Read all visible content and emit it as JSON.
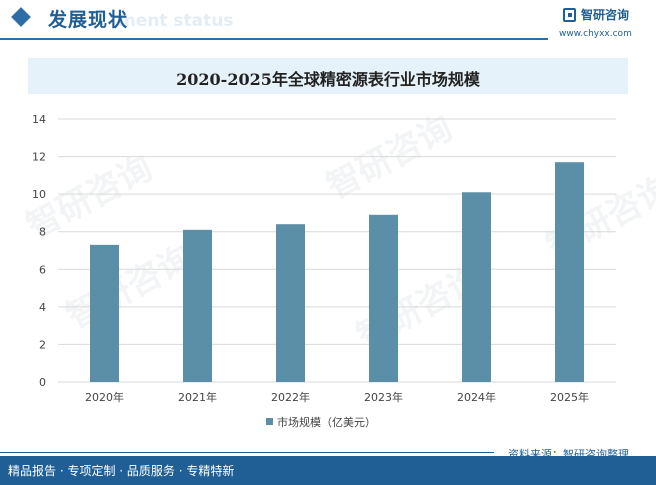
{
  "header": {
    "title": "发展现状",
    "subtitle_ghost": "ment status"
  },
  "logo": {
    "name": "智研咨询",
    "url": "www.chyxx.com"
  },
  "watermark": "智研咨询",
  "chart_data": {
    "type": "bar",
    "title": "2020-2025年全球精密源表行业市场规模",
    "categories": [
      "2020年",
      "2021年",
      "2022年",
      "2023年",
      "2024年",
      "2025年"
    ],
    "series": [
      {
        "name": "市场规模（亿美元）",
        "values": [
          7.3,
          8.1,
          8.4,
          8.9,
          10.1,
          11.7
        ],
        "color": "#5b8fa8"
      }
    ],
    "ylim": [
      0,
      14
    ],
    "yticks": [
      "0",
      "2",
      "4",
      "6",
      "8",
      "10",
      "12",
      "14"
    ],
    "grid": true,
    "legend_position": "bottom"
  },
  "source": "资料来源：智研咨询整理",
  "footer": "精品报告 · 专项定制 · 品质服务 · 专精特新",
  "colors": {
    "brand": "#1f5f96",
    "bar": "#5b8fa8",
    "title_band": "#e6f2fa"
  }
}
